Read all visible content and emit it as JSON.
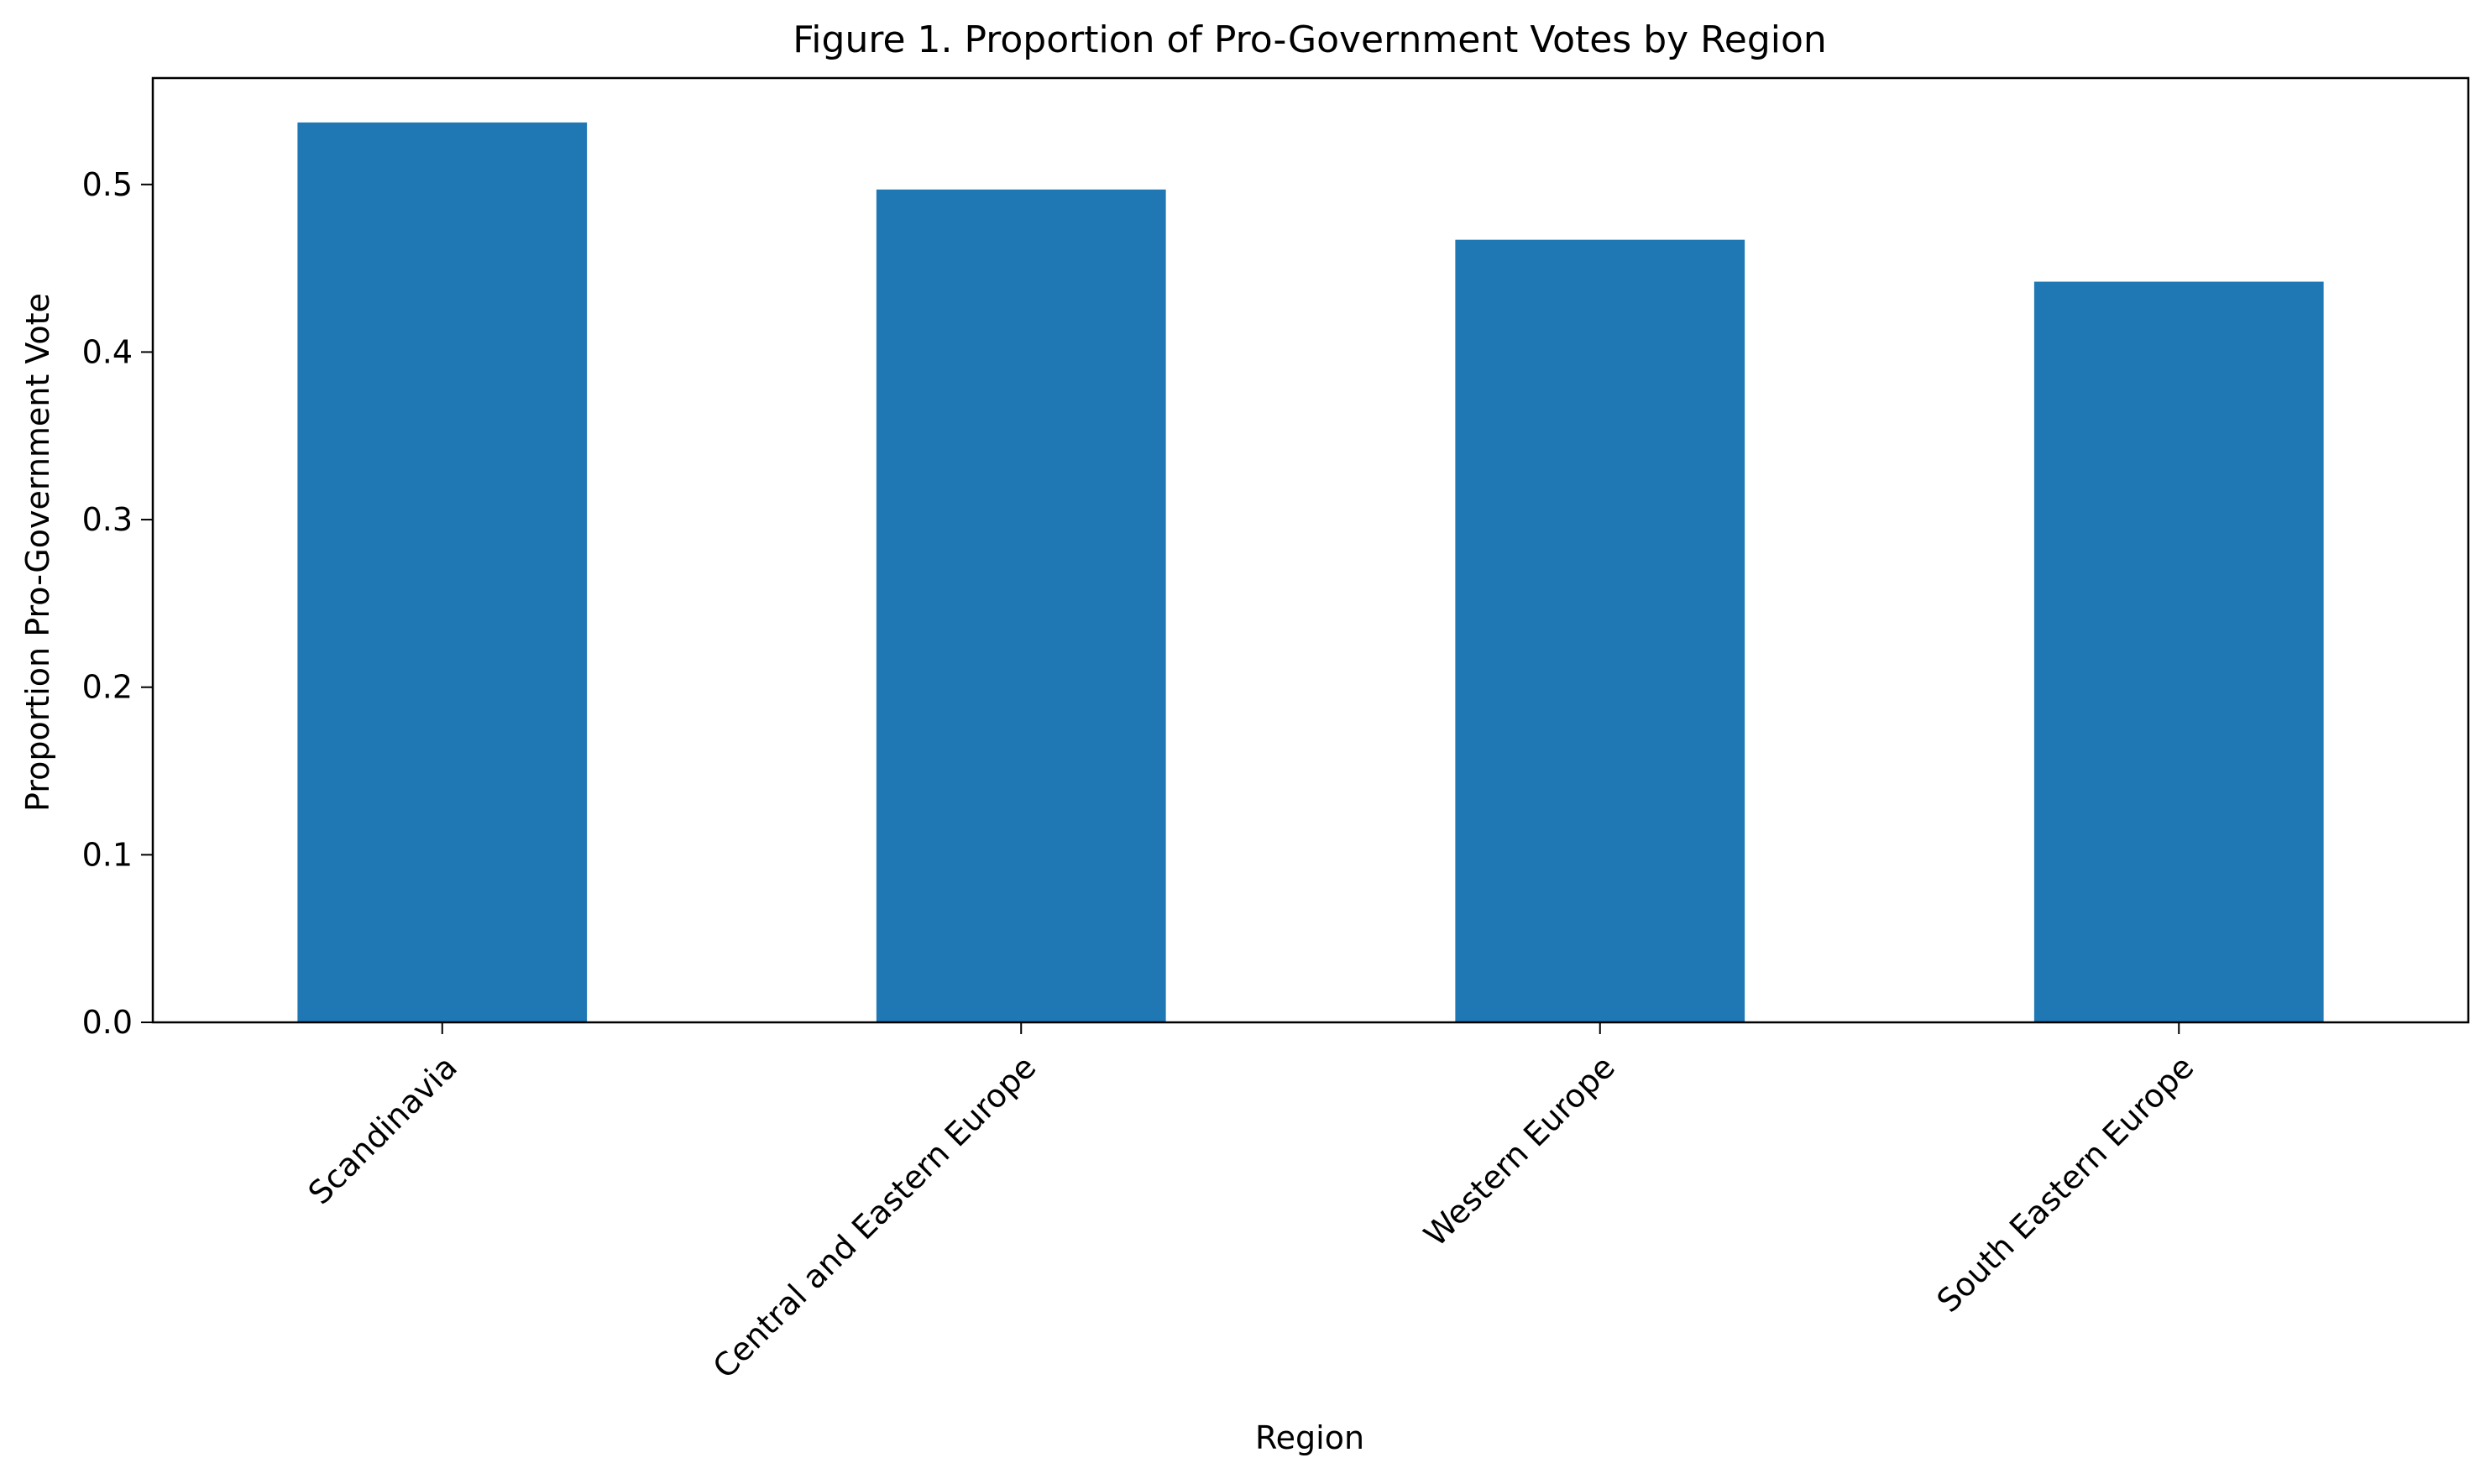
{
  "chart_data": {
    "type": "bar",
    "title": "Figure 1. Proportion of Pro-Government Votes by Region",
    "xlabel": "Region",
    "ylabel": "Proportion Pro-Government Vote",
    "categories": [
      "Scandinavia",
      "Central and Eastern Europe",
      "Western Europe",
      "South Eastern Europe"
    ],
    "values": [
      0.537,
      0.497,
      0.467,
      0.442
    ],
    "ylim": [
      0,
      0.5635
    ],
    "yticks": [
      0.0,
      0.1,
      0.2,
      0.3,
      0.4,
      0.5
    ],
    "ytick_labels": [
      "0.0",
      "0.1",
      "0.2",
      "0.3",
      "0.4",
      "0.5"
    ],
    "grid": false,
    "legend": false,
    "colors": {
      "bar": "#1f77b4",
      "axis": "#000000",
      "background": "#ffffff"
    }
  }
}
